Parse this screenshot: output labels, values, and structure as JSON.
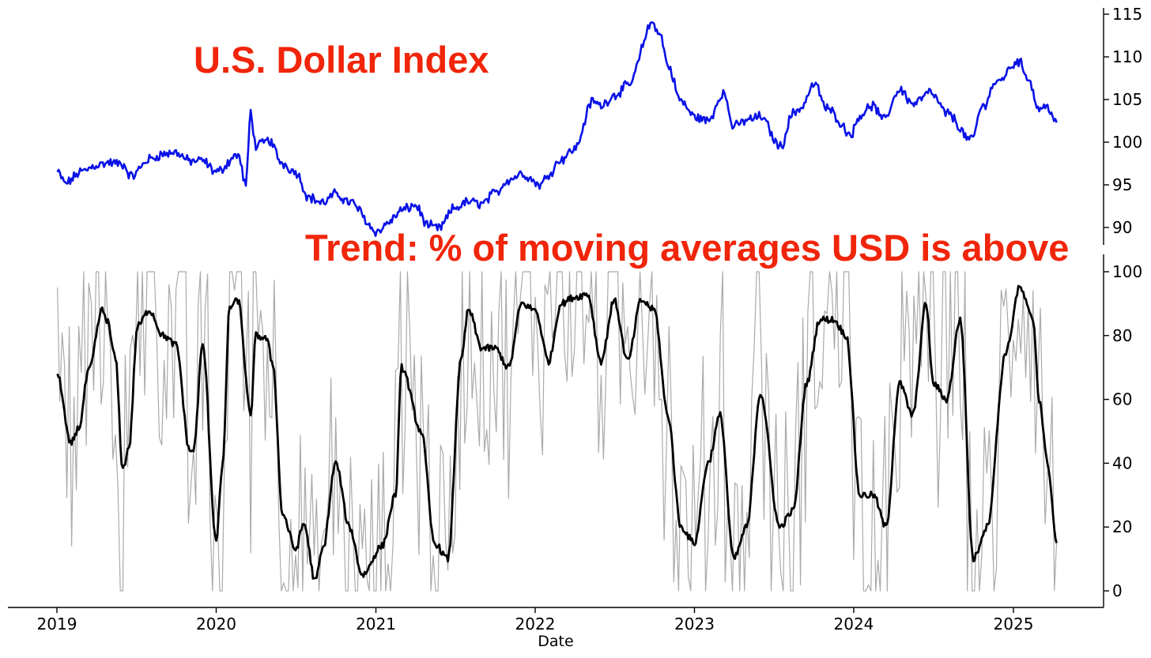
{
  "chart_data": [
    {
      "type": "line",
      "title": "U.S. Dollar Index",
      "xlabel": "",
      "ylabel": "",
      "x_ticks": [
        "2019",
        "2020",
        "2021",
        "2022",
        "2023",
        "2024",
        "2025"
      ],
      "y_ticks": [
        90,
        95,
        100,
        105,
        110,
        115
      ],
      "ylim": [
        88.5,
        115.5
      ],
      "y_axis_side": "right",
      "grid": false,
      "colors": {
        "line": "#0a12e6",
        "annotation": "#f0250a"
      },
      "series": [
        {
          "x": [
            "2019-01-02",
            "2019-01-20",
            "2019-03-01",
            "2019-04-01",
            "2019-05-01",
            "2019-06-01",
            "2019-06-20",
            "2019-08-01",
            "2019-09-01",
            "2019-10-01",
            "2019-11-01",
            "2019-12-01",
            "2020-01-01",
            "2020-02-20",
            "2020-03-09",
            "2020-03-20",
            "2020-04-01",
            "2020-05-01",
            "2020-06-01",
            "2020-07-01",
            "2020-08-01",
            "2020-09-01",
            "2020-10-01",
            "2020-11-01",
            "2021-01-06",
            "2021-02-01",
            "2021-03-01",
            "2021-04-01",
            "2021-05-01",
            "2021-05-25",
            "2021-07-01",
            "2021-08-01",
            "2021-09-01",
            "2021-10-01",
            "2021-11-01",
            "2021-12-01",
            "2022-01-14",
            "2022-02-01",
            "2022-03-01",
            "2022-04-01",
            "2022-05-13",
            "2022-06-01",
            "2022-07-01",
            "2022-08-01",
            "2022-09-28",
            "2022-10-15",
            "2022-11-01",
            "2022-12-01",
            "2023-01-01",
            "2023-02-01",
            "2023-03-08",
            "2023-04-01",
            "2023-05-01",
            "2023-06-01",
            "2023-07-17",
            "2023-08-15",
            "2023-09-01",
            "2023-10-03",
            "2023-11-01",
            "2023-12-27",
            "2024-01-15",
            "2024-02-14",
            "2024-03-08",
            "2024-04-16",
            "2024-05-15",
            "2024-06-25",
            "2024-08-01",
            "2024-09-27",
            "2024-10-20",
            "2024-11-22",
            "2025-01-13",
            "2025-02-01",
            "2025-03-01",
            "2025-03-20",
            "2025-04-10"
          ],
          "values": [
            96.5,
            95.2,
            96.6,
            97.3,
            97.6,
            97.4,
            96.0,
            98.0,
            98.6,
            98.8,
            97.8,
            97.8,
            96.5,
            98.5,
            95.0,
            103.5,
            99.5,
            100.2,
            97.5,
            96.5,
            93.5,
            92.9,
            93.9,
            93.0,
            89.5,
            90.7,
            92.0,
            92.6,
            90.2,
            89.9,
            92.3,
            93.0,
            92.8,
            94.0,
            95.6,
            96.3,
            95.0,
            96.3,
            98.0,
            99.2,
            104.8,
            104.3,
            105.5,
            106.6,
            114.0,
            112.5,
            109.0,
            104.8,
            103.0,
            102.5,
            105.8,
            101.8,
            102.6,
            103.0,
            99.5,
            103.4,
            104.0,
            106.8,
            103.9,
            101.0,
            103.2,
            104.3,
            102.6,
            106.2,
            104.5,
            105.8,
            103.4,
            100.2,
            104.0,
            107.0,
            109.5,
            107.8,
            103.9,
            104.2,
            102.3
          ]
        }
      ]
    },
    {
      "type": "line",
      "title": "Trend: % of moving averages USD is above",
      "xlabel": "Date",
      "ylabel": "",
      "x_ticks": [
        "2019",
        "2020",
        "2021",
        "2022",
        "2023",
        "2024",
        "2025"
      ],
      "y_ticks": [
        0,
        20,
        40,
        60,
        80,
        100
      ],
      "ylim": [
        -4,
        104
      ],
      "y_axis_side": "right",
      "grid": false,
      "colors": {
        "raw": "#aaaaaa",
        "smoothed": "#000000"
      },
      "series": [
        {
          "x": [
            "2019-01-02",
            "2019-02-01",
            "2019-02-20",
            "2019-03-15",
            "2019-04-15",
            "2019-04-25",
            "2019-05-15",
            "2019-06-01",
            "2019-06-15",
            "2019-07-05",
            "2019-08-01",
            "2019-09-01",
            "2019-10-01",
            "2019-11-01",
            "2019-11-10",
            "2019-12-01",
            "2020-01-01",
            "2020-01-15",
            "2020-02-01",
            "2020-02-20",
            "2020-03-20",
            "2020-04-01",
            "2020-04-25",
            "2020-05-10",
            "2020-06-01",
            "2020-07-01",
            "2020-07-20",
            "2020-08-15",
            "2020-09-01",
            "2020-10-01",
            "2020-11-01",
            "2020-12-01",
            "2021-01-15",
            "2021-02-15",
            "2021-03-01",
            "2021-04-15",
            "2021-05-15",
            "2021-06-15",
            "2021-07-15",
            "2021-08-01",
            "2021-09-01",
            "2021-10-01",
            "2021-11-01",
            "2021-12-01",
            "2022-01-01",
            "2022-02-01",
            "2022-03-01",
            "2022-04-01",
            "2022-05-01",
            "2022-06-01",
            "2022-07-01",
            "2022-08-01",
            "2022-09-01",
            "2022-10-01",
            "2022-11-01",
            "2022-12-01",
            "2023-01-01",
            "2023-02-01",
            "2023-03-01",
            "2023-04-01",
            "2023-05-01",
            "2023-06-01",
            "2023-07-15",
            "2023-08-15",
            "2023-09-15",
            "2023-10-15",
            "2023-11-15",
            "2023-12-15",
            "2024-01-15",
            "2024-02-15",
            "2024-03-15",
            "2024-04-15",
            "2024-05-15",
            "2024-06-15",
            "2024-07-01",
            "2024-08-01",
            "2024-09-01",
            "2024-10-01",
            "2024-11-01",
            "2024-12-15",
            "2025-01-15",
            "2025-02-15",
            "2025-03-01",
            "2025-03-20",
            "2025-04-10"
          ],
          "values": [
            68,
            46,
            51,
            69,
            88,
            85,
            73,
            38,
            45,
            83,
            88,
            80,
            77,
            44,
            44,
            77,
            16,
            38,
            89,
            91,
            55,
            80,
            79,
            71,
            24,
            13,
            21,
            3,
            13,
            40,
            20,
            5,
            14,
            30,
            70,
            50,
            15,
            10,
            72,
            88,
            76,
            76,
            70,
            90,
            88,
            72,
            90,
            92,
            93,
            72,
            91,
            72,
            91,
            88,
            55,
            20,
            15,
            40,
            55,
            10,
            20,
            62,
            20,
            25,
            65,
            85,
            85,
            80,
            30,
            30,
            20,
            65,
            55,
            90,
            65,
            60,
            85,
            10,
            20,
            75,
            95,
            85,
            60,
            40,
            15
          ],
          "name": ""
        }
      ]
    }
  ]
}
